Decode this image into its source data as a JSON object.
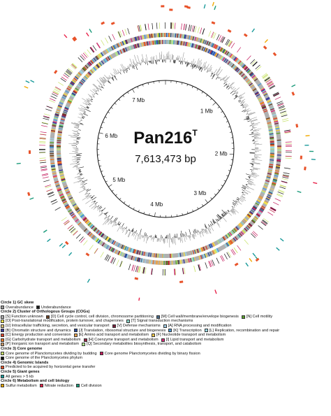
{
  "genome": {
    "name": "Pan216",
    "superscript": "T",
    "size_label": "7,613,473 bp",
    "total_bp": 7613473,
    "ticks": [
      "1 Mb",
      "2 Mb",
      "3 Mb",
      "4 Mb",
      "5 Mb",
      "6 Mb",
      "7 Mb"
    ],
    "tick_values_mb": [
      1,
      2,
      3,
      4,
      5,
      6,
      7
    ]
  },
  "colors": {
    "overabundance": "#9a9a9a",
    "underabundance": "#1a1a1a",
    "core_budding": "#c8e36b",
    "core_fission": "#c2185b",
    "core_phylum": "#111111",
    "genomic_island": "#e8532a",
    "giant_genes": "#1a9a9a",
    "sulfur": "#f2a900",
    "nitrate": "#e8234a",
    "cell_division": "#1a9a7a"
  },
  "legend": {
    "circle1": {
      "title": "Circle 1)  GC skew",
      "items": [
        {
          "label": "Overabundance",
          "color": "#9a9a9a"
        },
        {
          "label": "Underabundance",
          "color": "#1a1a1a"
        }
      ]
    },
    "circle2": {
      "title": "Circle 2)  Cluster of Orthologous Groups (COGs)",
      "rows": [
        [
          {
            "label": "[S] Function unknown",
            "color": "#b0b0b0"
          },
          {
            "label": "[D] Cell cycle control, cell division, chromosome partitioning",
            "color": "#6b4226"
          },
          {
            "label": "[M] Cell wall/membrane/envelope biogenesis",
            "color": "#4a6b8a"
          },
          {
            "label": "[N] Cell motility",
            "color": "#5aa02c"
          }
        ],
        [
          {
            "label": "[O] Post-translational modification, protein turnover, and chaperones",
            "color": "#f2e34a"
          },
          {
            "label": "[T] Signal transduction mechanisms",
            "color": "#8bd3c7"
          }
        ],
        [
          {
            "label": "[U] Intracellular trafficking, secretion, and vesicular transport",
            "color": "#d9c27a"
          },
          {
            "label": "[V] Defense mechanisms",
            "color": "#7a1f3d"
          },
          {
            "label": "[A] RNA processing and modification",
            "color": "#9ecae1"
          }
        ],
        [
          {
            "label": "[B] Chromatin structure and dynamics",
            "color": "#3a3a9a"
          },
          {
            "label": "[J] Translation, ribosomal structure and biogenesis",
            "color": "#2a4a9a"
          },
          {
            "label": "[K] Transcription",
            "color": "#4a9ad9"
          },
          {
            "label": "[L] Replication, recombination and repair",
            "color": "#9ad9e8"
          }
        ],
        [
          {
            "label": "[C] Energy production and conversion",
            "color": "#d9432a"
          },
          {
            "label": "[E] Amino acid transport and metabolism",
            "color": "#e8a24a"
          },
          {
            "label": "[F] Nucleotide transport and metabolism",
            "color": "#f2c84a"
          }
        ],
        [
          {
            "label": "[G] Carbohydrate transport and metabolism",
            "color": "#e87a2a"
          },
          {
            "label": "[H] Coenzyme transport and metabolism",
            "color": "#9a2a4a"
          },
          {
            "label": "[I] Lipid transport and metabolism",
            "color": "#d92a7a"
          }
        ],
        [
          {
            "label": "[P] Inorganic ion transport and metabolism",
            "color": "#c89a6b"
          },
          {
            "label": "[Q] Secondary metabolites biosynthesis, transport, and catabolism",
            "color": "#b0e88a"
          }
        ]
      ]
    },
    "circle3": {
      "title": "Circle 3)  Core genome",
      "rows": [
        [
          {
            "label": "Core genome of Planctomycetes dividing by budding",
            "color": "#c8e36b"
          },
          {
            "label": "Core genome Planctomycetes dividing by binary fission",
            "color": "#c2185b"
          }
        ],
        [
          {
            "label": "Core genome of the Planctomycetes phylum",
            "color": "#111111"
          }
        ]
      ]
    },
    "circle4": {
      "title": "Circle 4)  Genomic Islands",
      "items": [
        {
          "label": "Predicted to be acquired by horizontal gene transfer",
          "color": "#e8532a"
        }
      ]
    },
    "circle5": {
      "title": "Circle 5)  Giant genes",
      "items": [
        {
          "label": "All genes > 5 kb",
          "color": "#1a9a9a"
        }
      ]
    },
    "circle6": {
      "title": "Circle 6)  Metabolism and cell biology",
      "items": [
        {
          "label": "Sulfur metabolism",
          "color": "#f2a900"
        },
        {
          "label": "Nitrate reduction",
          "color": "#e8234a"
        },
        {
          "label": "Cell division",
          "color": "#1a9a7a"
        }
      ]
    }
  }
}
